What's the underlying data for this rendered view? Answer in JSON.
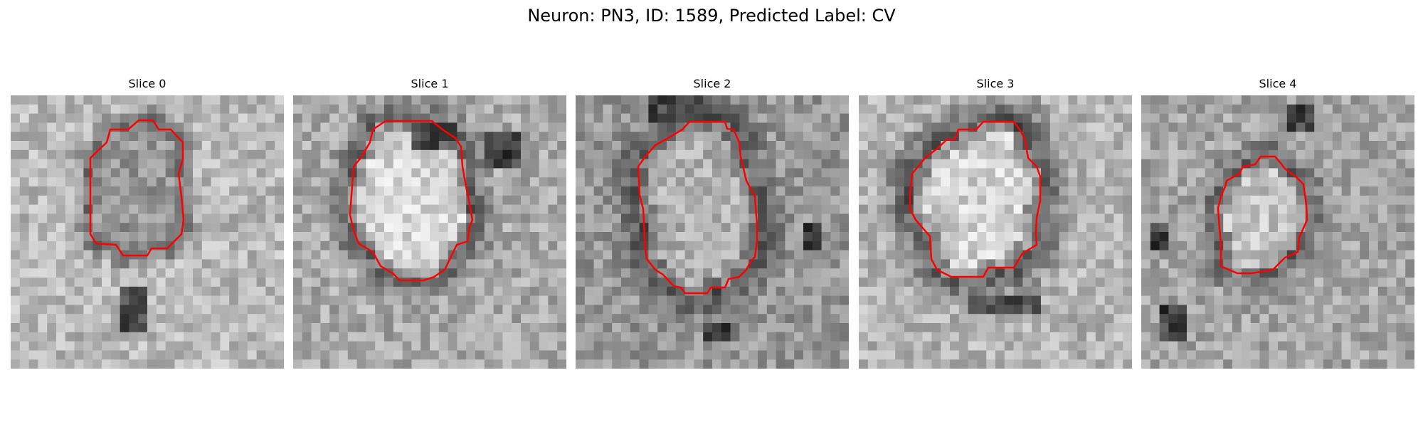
{
  "figure": {
    "title": "Neuron: PN3, ID: 1589, Predicted Label: CV"
  },
  "panels": [
    {
      "title": "Slice 0",
      "contour_color": "#ff0000"
    },
    {
      "title": "Slice 1",
      "contour_color": "#ff0000"
    },
    {
      "title": "Slice 2",
      "contour_color": "#ff0000"
    },
    {
      "title": "Slice 3",
      "contour_color": "#ff0000"
    },
    {
      "title": "Slice 4",
      "contour_color": "#ff0000"
    }
  ]
}
